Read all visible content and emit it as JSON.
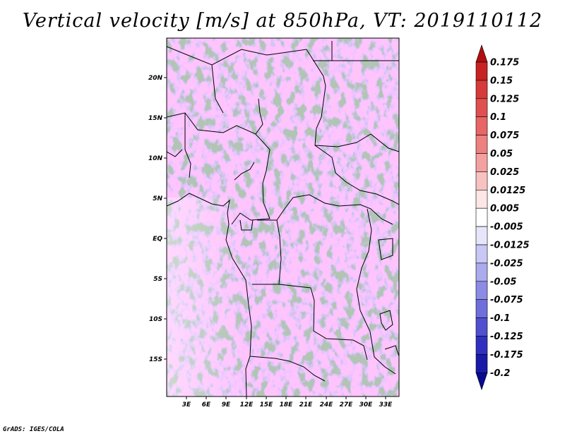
{
  "title": "Vertical velocity [m/s] at 850hPa, VT: 2019110112",
  "credit": "GrADS: IGES/COLA",
  "map": {
    "lat_labels": [
      "20N",
      "15N",
      "10N",
      "5N",
      "EQ",
      "5S",
      "10S",
      "15S"
    ],
    "lon_labels": [
      "3E",
      "6E",
      "9E",
      "12E",
      "15E",
      "18E",
      "21E",
      "24E",
      "27E",
      "30E",
      "33E"
    ]
  },
  "colorbar": {
    "levels": [
      "0.175",
      "0.15",
      "0.125",
      "0.1",
      "0.075",
      "0.05",
      "0.025",
      "0.0125",
      "0.005",
      "-0.005",
      "-0.0125",
      "-0.025",
      "-0.05",
      "-0.075",
      "-0.1",
      "-0.125",
      "-0.175",
      "-0.2"
    ],
    "colors_top_to_bottom": [
      "#b01010",
      "#c82222",
      "#d73a3a",
      "#e05050",
      "#e86666",
      "#ef8080",
      "#f5a0a0",
      "#f8c2c2",
      "#fde6e6",
      "#ffffff",
      "#e6e6fb",
      "#c8c8f4",
      "#aaaaee",
      "#8c8ce6",
      "#6e6edc",
      "#5050d0",
      "#3030c0",
      "#1a1aa8",
      "#0a0a90"
    ]
  }
}
